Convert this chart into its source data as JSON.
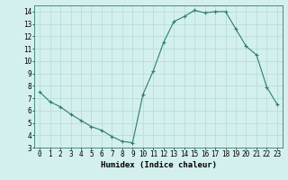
{
  "xlabel": "Humidex (Indice chaleur)",
  "ylabel": "",
  "x": [
    0,
    1,
    2,
    3,
    4,
    5,
    6,
    7,
    8,
    9,
    10,
    11,
    12,
    13,
    14,
    15,
    16,
    17,
    18,
    19,
    20,
    21,
    22,
    23
  ],
  "y": [
    7.5,
    6.7,
    6.3,
    5.7,
    5.2,
    4.7,
    4.4,
    3.9,
    3.5,
    3.4,
    7.3,
    9.2,
    11.5,
    13.2,
    13.6,
    14.1,
    13.9,
    14.0,
    14.0,
    12.6,
    11.2,
    10.5,
    7.9,
    6.5
  ],
  "xlim": [
    -0.5,
    23.5
  ],
  "ylim": [
    3,
    14.5
  ],
  "yticks": [
    3,
    4,
    5,
    6,
    7,
    8,
    9,
    10,
    11,
    12,
    13,
    14
  ],
  "xticks": [
    0,
    1,
    2,
    3,
    4,
    5,
    6,
    7,
    8,
    9,
    10,
    11,
    12,
    13,
    14,
    15,
    16,
    17,
    18,
    19,
    20,
    21,
    22,
    23
  ],
  "line_color": "#2d7d6e",
  "marker": "+",
  "bg_color": "#d4f0ee",
  "grid_color": "#b8ddd9",
  "label_fontsize": 6.5,
  "tick_fontsize": 5.5
}
